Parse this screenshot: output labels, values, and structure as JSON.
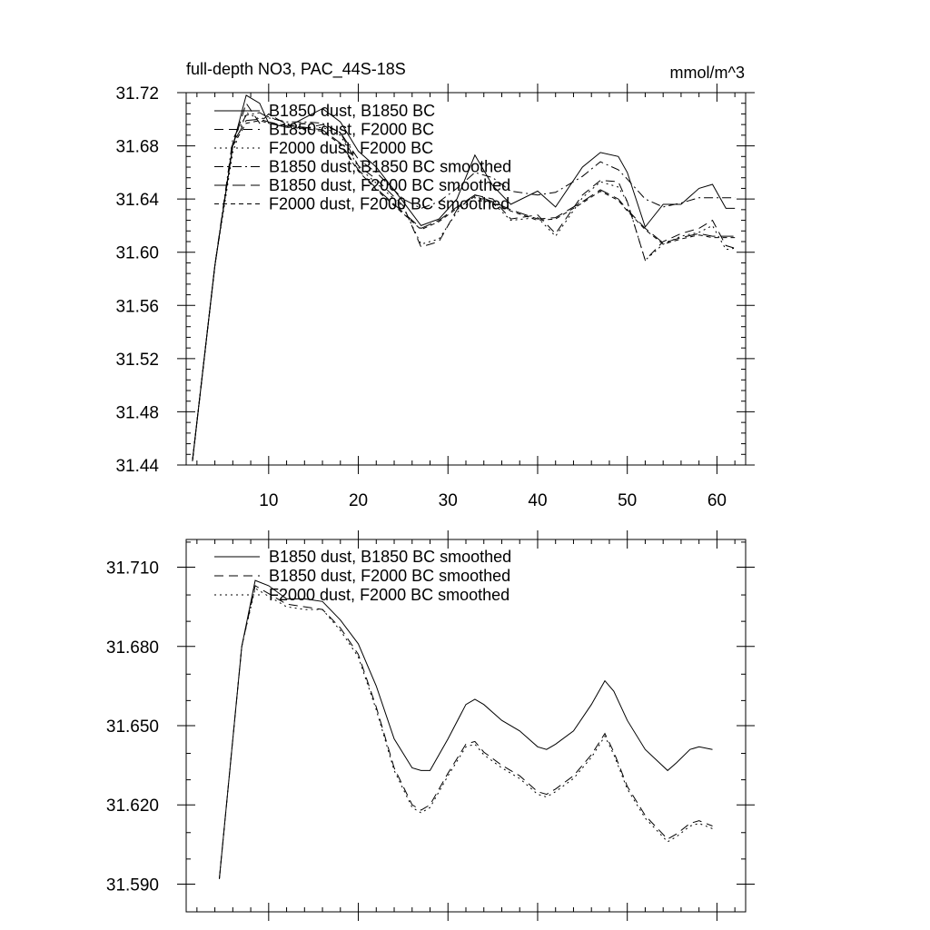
{
  "chart_data": [
    {
      "type": "line",
      "title": "full-depth NO3, PAC_44S-18S",
      "units": "mmol/m^3",
      "xlabel": "",
      "ylabel": "",
      "xlim": [
        0.8,
        63.2
      ],
      "ylim": [
        31.44,
        31.72
      ],
      "xticks": [
        10,
        20,
        30,
        40,
        50,
        60
      ],
      "xtick_labels": [
        "10",
        "20",
        "30",
        "40",
        "50",
        "60"
      ],
      "yticks": [
        31.44,
        31.48,
        31.52,
        31.56,
        31.6,
        31.64,
        31.68,
        31.72
      ],
      "ytick_labels": [
        "31.44",
        "31.48",
        "31.52",
        "31.56",
        "31.60",
        "31.64",
        "31.68",
        "31.72"
      ],
      "grid": false,
      "legend_position": "top-left",
      "series": [
        {
          "name": "B1850 dust, B1850 BC",
          "style": "solid",
          "x": [
            1.5,
            4,
            6,
            7.5,
            9,
            10,
            12,
            14,
            16,
            18,
            20,
            22,
            25,
            27,
            29,
            31,
            33,
            35,
            37,
            40,
            42,
            45,
            47,
            49,
            50,
            52,
            54,
            56,
            58,
            59.5,
            61,
            62
          ],
          "y": [
            31.443,
            31.59,
            31.68,
            31.718,
            31.712,
            31.697,
            31.694,
            31.701,
            31.708,
            31.698,
            31.676,
            31.664,
            31.638,
            31.62,
            31.625,
            31.64,
            31.673,
            31.65,
            31.636,
            31.646,
            31.634,
            31.664,
            31.675,
            31.672,
            31.66,
            31.619,
            31.636,
            31.636,
            31.648,
            31.651,
            31.633,
            31.633
          ]
        },
        {
          "name": "B1850 dust, F2000 BC",
          "style": "dashed",
          "x": [
            1.5,
            4,
            6,
            7.5,
            9,
            10,
            12,
            14,
            16,
            18,
            20,
            22,
            25,
            27,
            29,
            31,
            33,
            35,
            37,
            40,
            42,
            45,
            47,
            49,
            50,
            52,
            54,
            56,
            58,
            59.5,
            61,
            62
          ],
          "y": [
            31.443,
            31.59,
            31.68,
            31.712,
            31.697,
            31.704,
            31.696,
            31.693,
            31.696,
            31.69,
            31.665,
            31.655,
            31.635,
            31.604,
            31.608,
            31.632,
            31.643,
            31.64,
            31.625,
            31.628,
            31.614,
            31.643,
            31.654,
            31.653,
            31.638,
            31.594,
            31.608,
            31.614,
            31.618,
            31.624,
            31.605,
            31.603
          ]
        },
        {
          "name": "F2000 dust, F2000 BC",
          "style": "dotted",
          "x": [
            1.5,
            4,
            6,
            7.5,
            9,
            10,
            12,
            14,
            16,
            18,
            20,
            22,
            25,
            27,
            29,
            31,
            33,
            35,
            37,
            40,
            42,
            45,
            47,
            49,
            50,
            52,
            54,
            56,
            58,
            59.5,
            61,
            62
          ],
          "y": [
            31.443,
            31.59,
            31.675,
            31.705,
            31.7,
            31.702,
            31.697,
            31.692,
            31.694,
            31.688,
            31.664,
            31.652,
            31.634,
            31.606,
            31.61,
            31.63,
            31.641,
            31.637,
            31.624,
            31.626,
            31.612,
            31.641,
            31.653,
            31.649,
            31.638,
            31.594,
            31.606,
            31.612,
            31.615,
            31.62,
            31.602,
            31.603
          ]
        },
        {
          "name": "B1850 dust, B1850 BC smoothed",
          "style": "dash-dot",
          "x": [
            1.5,
            4,
            6,
            7.5,
            9,
            10,
            12,
            14,
            16,
            18,
            20,
            22,
            25,
            27,
            29,
            31,
            33,
            35,
            37,
            40,
            42,
            45,
            47,
            49,
            50,
            52,
            54,
            56,
            58,
            59.5,
            61,
            62
          ],
          "y": [
            31.443,
            31.59,
            31.685,
            31.703,
            31.705,
            31.701,
            31.698,
            31.698,
            31.697,
            31.69,
            31.67,
            31.66,
            31.64,
            31.633,
            31.638,
            31.648,
            31.66,
            31.656,
            31.646,
            31.643,
            31.645,
            31.657,
            31.668,
            31.662,
            31.655,
            31.64,
            31.634,
            31.637,
            31.641,
            31.641,
            31.641,
            31.641
          ]
        },
        {
          "name": "B1850 dust, F2000 BC smoothed",
          "style": "long-dash",
          "x": [
            1.5,
            4,
            6,
            7.5,
            9,
            10,
            12,
            14,
            16,
            18,
            20,
            22,
            25,
            27,
            29,
            31,
            33,
            35,
            37,
            40,
            42,
            45,
            47,
            49,
            50,
            52,
            54,
            56,
            58,
            59.5,
            61,
            62
          ],
          "y": [
            31.443,
            31.59,
            31.682,
            31.699,
            31.7,
            31.698,
            31.695,
            31.694,
            31.692,
            31.682,
            31.662,
            31.648,
            31.63,
            31.618,
            31.624,
            31.634,
            31.643,
            31.638,
            31.632,
            31.625,
            31.626,
            31.638,
            31.647,
            31.64,
            31.632,
            31.618,
            31.607,
            31.611,
            31.614,
            31.612,
            31.612,
            31.612
          ]
        },
        {
          "name": "F2000 dust, F2000 BC smoothed",
          "style": "short-dash",
          "x": [
            1.5,
            4,
            6,
            7.5,
            9,
            10,
            12,
            14,
            16,
            18,
            20,
            22,
            25,
            27,
            29,
            31,
            33,
            35,
            37,
            40,
            42,
            45,
            47,
            49,
            50,
            52,
            54,
            56,
            58,
            59.5,
            61,
            62
          ],
          "y": [
            31.443,
            31.59,
            31.68,
            31.697,
            31.699,
            31.697,
            31.694,
            31.693,
            31.691,
            31.681,
            31.661,
            31.647,
            31.629,
            31.617,
            31.623,
            31.633,
            31.642,
            31.637,
            31.631,
            31.624,
            31.625,
            31.637,
            31.646,
            31.639,
            31.631,
            31.617,
            31.606,
            31.61,
            31.613,
            31.611,
            31.611,
            31.611
          ]
        }
      ]
    },
    {
      "type": "line",
      "title": "",
      "xlabel": "",
      "ylabel": "",
      "xlim": [
        0.8,
        63.2
      ],
      "ylim": [
        31.5795,
        31.7205
      ],
      "xticks": [
        10,
        20,
        30,
        40,
        50,
        60
      ],
      "yticks": [
        31.59,
        31.62,
        31.65,
        31.68,
        31.71
      ],
      "ytick_labels": [
        "31.590",
        "31.620",
        "31.650",
        "31.680",
        "31.710"
      ],
      "grid": false,
      "legend_position": "top-left",
      "series": [
        {
          "name": "B1850 dust, B1850 BC smoothed",
          "style": "solid",
          "x": [
            4.5,
            7,
            8.5,
            10,
            12,
            14,
            16,
            18,
            20,
            22,
            24,
            26,
            27,
            28,
            30,
            32,
            33,
            34,
            36,
            38,
            40,
            41,
            42,
            44,
            46,
            47.5,
            48.5,
            50,
            52,
            54.5,
            55.5,
            57,
            58,
            59.5
          ],
          "y": [
            31.592,
            31.68,
            31.705,
            31.703,
            31.698,
            31.698,
            31.697,
            31.69,
            31.681,
            31.665,
            31.645,
            31.634,
            31.633,
            31.633,
            31.645,
            31.658,
            31.66,
            31.658,
            31.652,
            31.648,
            31.642,
            31.641,
            31.643,
            31.648,
            31.658,
            31.667,
            31.663,
            31.652,
            31.641,
            31.633,
            31.636,
            31.641,
            31.642,
            31.641
          ]
        },
        {
          "name": "B1850 dust, F2000 BC smoothed",
          "style": "dashed",
          "x": [
            4.5,
            7,
            8.5,
            10,
            12,
            14,
            16,
            18,
            20,
            22,
            24,
            26,
            27,
            28,
            30,
            32,
            33,
            34,
            36,
            38,
            40,
            41,
            42,
            44,
            46,
            47.5,
            48.5,
            50,
            52,
            54.5,
            55.5,
            57,
            58,
            59.5
          ],
          "y": [
            31.592,
            31.68,
            31.703,
            31.7,
            31.696,
            31.695,
            31.694,
            31.687,
            31.677,
            31.657,
            31.634,
            31.62,
            31.618,
            31.62,
            31.632,
            31.643,
            31.644,
            31.64,
            31.635,
            31.631,
            31.625,
            31.624,
            31.626,
            31.631,
            31.639,
            31.647,
            31.64,
            31.627,
            31.616,
            31.607,
            31.609,
            31.613,
            31.614,
            31.612
          ]
        },
        {
          "name": "F2000 dust, F2000 BC smoothed",
          "style": "dotted",
          "x": [
            4.5,
            7,
            8.5,
            10,
            12,
            14,
            16,
            18,
            20,
            22,
            24,
            26,
            27,
            28,
            30,
            32,
            33,
            34,
            36,
            38,
            40,
            41,
            42,
            44,
            46,
            47.5,
            48.5,
            50,
            52,
            54.5,
            55.5,
            57,
            58,
            59.5
          ],
          "y": [
            31.592,
            31.68,
            31.702,
            31.699,
            31.695,
            31.694,
            31.694,
            31.686,
            31.676,
            31.656,
            31.633,
            31.619,
            31.617,
            31.619,
            31.631,
            31.642,
            31.643,
            31.639,
            31.634,
            31.63,
            31.624,
            31.623,
            31.625,
            31.63,
            31.638,
            31.646,
            31.639,
            31.626,
            31.615,
            31.606,
            31.608,
            31.612,
            31.613,
            31.611
          ]
        }
      ]
    }
  ]
}
